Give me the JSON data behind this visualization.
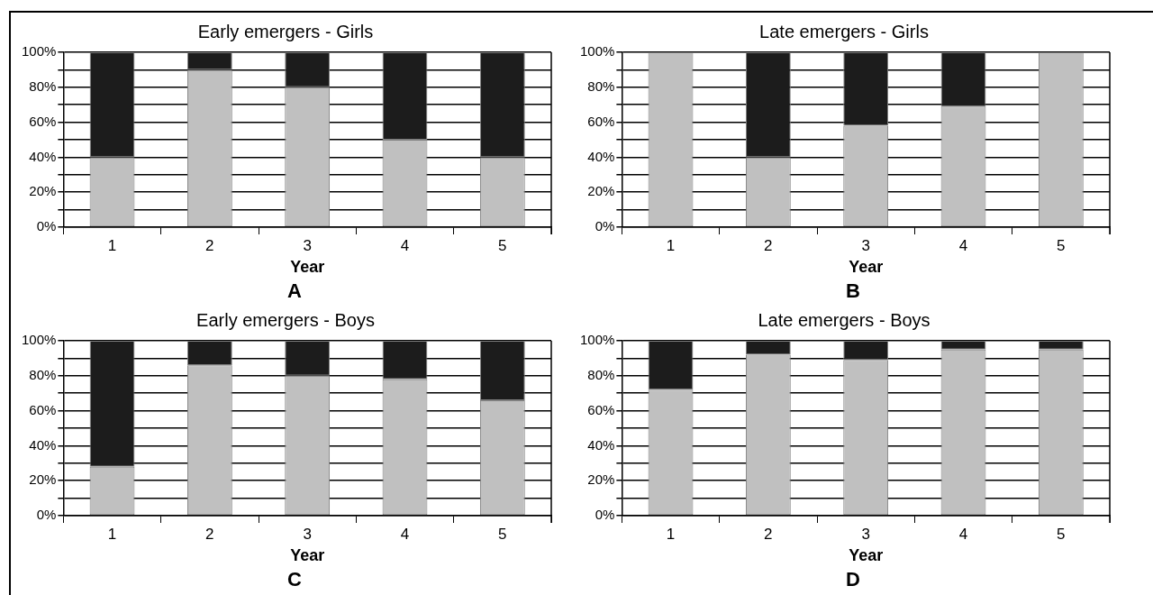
{
  "chart_data": [
    {
      "type": "bar",
      "title": "Early emergers - Girls",
      "xlabel": "Year",
      "annotations": [
        "A"
      ],
      "categories": [
        "1",
        "2",
        "3",
        "4",
        "5"
      ],
      "stacked": true,
      "grid": "y",
      "legend": false,
      "series": [
        {
          "color": "#c0c0c0",
          "values": [
            40,
            90,
            80,
            50,
            40
          ]
        },
        {
          "color": "#1c1c1c",
          "values": [
            60,
            10,
            20,
            50,
            60
          ]
        }
      ],
      "ylim": [
        0,
        100
      ],
      "yticks": [
        {
          "value": 0,
          "label": "0%"
        },
        {
          "value": 10,
          "label": null
        },
        {
          "value": 20,
          "label": "20%"
        },
        {
          "value": 30,
          "label": null
        },
        {
          "value": 40,
          "label": "40%"
        },
        {
          "value": 50,
          "label": null
        },
        {
          "value": 60,
          "label": "60%"
        },
        {
          "value": 70,
          "label": null
        },
        {
          "value": 80,
          "label": "80%"
        },
        {
          "value": 90,
          "label": null
        },
        {
          "value": 100,
          "label": "100%"
        }
      ]
    },
    {
      "type": "bar",
      "title": "Late emergers - Girls",
      "xlabel": "Year",
      "annotations": [
        "B"
      ],
      "categories": [
        "1",
        "2",
        "3",
        "4",
        "5"
      ],
      "stacked": true,
      "grid": "y",
      "legend": false,
      "series": [
        {
          "color": "#c0c0c0",
          "values": [
            100,
            40,
            58,
            69,
            100
          ]
        },
        {
          "color": "#1c1c1c",
          "values": [
            0,
            60,
            42,
            31,
            0
          ]
        }
      ],
      "ylim": [
        0,
        100
      ],
      "yticks": [
        {
          "value": 0,
          "label": "0%"
        },
        {
          "value": 10,
          "label": null
        },
        {
          "value": 20,
          "label": "20%"
        },
        {
          "value": 30,
          "label": null
        },
        {
          "value": 40,
          "label": "40%"
        },
        {
          "value": 50,
          "label": null
        },
        {
          "value": 60,
          "label": "60%"
        },
        {
          "value": 70,
          "label": null
        },
        {
          "value": 80,
          "label": "80%"
        },
        {
          "value": 90,
          "label": null
        },
        {
          "value": 100,
          "label": "100%"
        }
      ]
    },
    {
      "type": "bar",
      "title": "Early emergers - Boys",
      "xlabel": "Year",
      "annotations": [
        "C"
      ],
      "categories": [
        "1",
        "2",
        "3",
        "4",
        "5"
      ],
      "stacked": true,
      "grid": "y",
      "legend": false,
      "series": [
        {
          "color": "#c0c0c0",
          "values": [
            28,
            86,
            80,
            78,
            66
          ]
        },
        {
          "color": "#1c1c1c",
          "values": [
            72,
            14,
            20,
            22,
            34
          ]
        }
      ],
      "ylim": [
        0,
        100
      ],
      "yticks": [
        {
          "value": 0,
          "label": "0%"
        },
        {
          "value": 10,
          "label": null
        },
        {
          "value": 20,
          "label": "20%"
        },
        {
          "value": 30,
          "label": null
        },
        {
          "value": 40,
          "label": "40%"
        },
        {
          "value": 50,
          "label": null
        },
        {
          "value": 60,
          "label": "60%"
        },
        {
          "value": 70,
          "label": null
        },
        {
          "value": 80,
          "label": "80%"
        },
        {
          "value": 90,
          "label": null
        },
        {
          "value": 100,
          "label": "100%"
        }
      ]
    },
    {
      "type": "bar",
      "title": "Late emergers - Boys",
      "xlabel": "Year",
      "annotations": [
        "D"
      ],
      "categories": [
        "1",
        "2",
        "3",
        "4",
        "5"
      ],
      "stacked": true,
      "grid": "y",
      "legend": false,
      "series": [
        {
          "color": "#c0c0c0",
          "values": [
            72,
            92,
            89,
            95,
            95
          ]
        },
        {
          "color": "#1c1c1c",
          "values": [
            28,
            8,
            11,
            5,
            5
          ]
        }
      ],
      "ylim": [
        0,
        100
      ],
      "yticks": [
        {
          "value": 0,
          "label": "0%"
        },
        {
          "value": 10,
          "label": null
        },
        {
          "value": 20,
          "label": "20%"
        },
        {
          "value": 30,
          "label": null
        },
        {
          "value": 40,
          "label": "40%"
        },
        {
          "value": 50,
          "label": null
        },
        {
          "value": 60,
          "label": "60%"
        },
        {
          "value": 70,
          "label": null
        },
        {
          "value": 80,
          "label": "80%"
        },
        {
          "value": 90,
          "label": null
        },
        {
          "value": 100,
          "label": "100%"
        }
      ]
    }
  ]
}
